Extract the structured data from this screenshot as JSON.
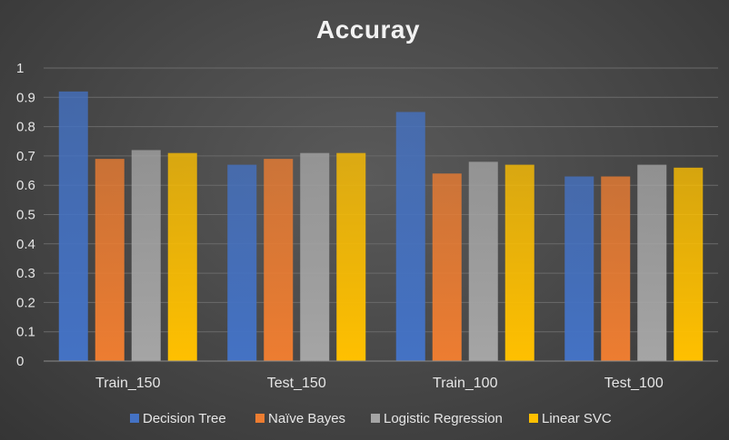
{
  "chart_data": {
    "type": "bar",
    "title": "Accuray",
    "xlabel": "",
    "ylabel": "",
    "categories": [
      "Train_150",
      "Test_150",
      "Train_100",
      "Test_100"
    ],
    "series": [
      {
        "name": "Decision Tree",
        "color": "#4472C4",
        "values": [
          0.92,
          0.67,
          0.85,
          0.63
        ]
      },
      {
        "name": "Naïve Bayes",
        "color": "#ED7D31",
        "values": [
          0.69,
          0.69,
          0.64,
          0.63
        ]
      },
      {
        "name": "Logistic Regression",
        "color": "#A5A5A5",
        "values": [
          0.72,
          0.71,
          0.68,
          0.67
        ]
      },
      {
        "name": "Linear SVC",
        "color": "#FFC000",
        "values": [
          0.71,
          0.71,
          0.67,
          0.66
        ]
      }
    ],
    "ylim": [
      0,
      1
    ],
    "yticks": [
      "0",
      "0.1",
      "0.2",
      "0.3",
      "0.4",
      "0.5",
      "0.6",
      "0.7",
      "0.8",
      "0.9",
      "1"
    ],
    "grid": true,
    "legend_position": "bottom"
  }
}
